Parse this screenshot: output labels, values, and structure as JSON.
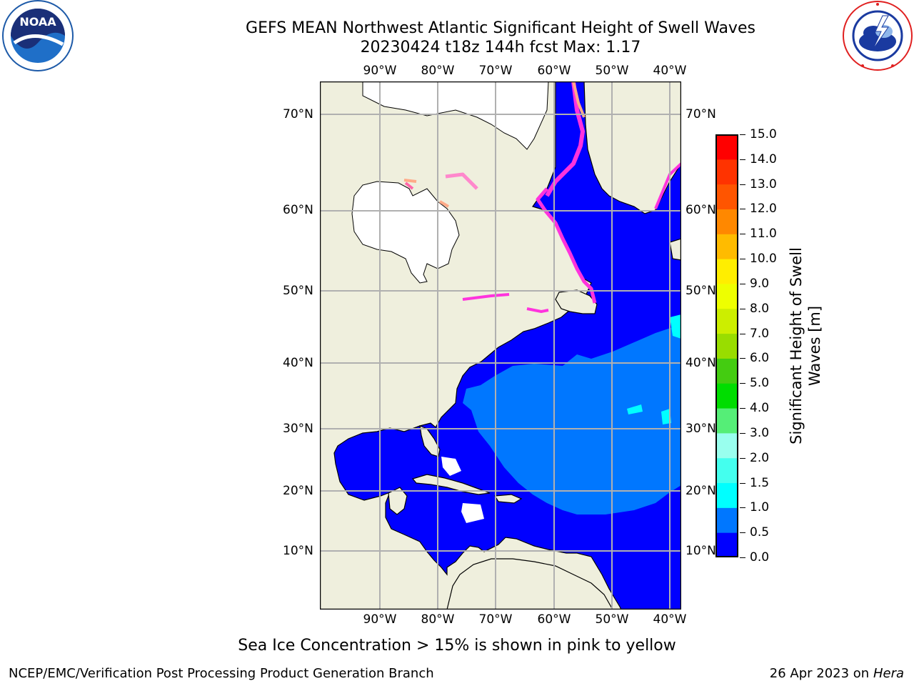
{
  "title": {
    "line1": "GEFS MEAN Northwest Atlantic Significant Height of Swell Waves",
    "line2": "20230424 t18z 144h fcst   Max: 1.17"
  },
  "map": {
    "lon_labels": [
      "90°W",
      "80°W",
      "70°W",
      "60°W",
      "50°W",
      "40°W"
    ],
    "lat_labels": [
      "70°N",
      "60°N",
      "50°N",
      "40°N",
      "30°N",
      "20°N",
      "10°N"
    ],
    "colors": {
      "land": "#efefdd",
      "ice": "#ffffff",
      "grid": "#b0b0b0",
      "coast": "#000000",
      "swell_0": "#0000ff",
      "swell_05": "#0077ff",
      "swell_10": "#00ffff",
      "ice_edge": "#ff33dd",
      "ice_edge_2": "#ffaa88"
    }
  },
  "colorbar": {
    "label": "Significant Height of Swell Waves [m]",
    "ticks": [
      "0.0",
      "0.5",
      "1.0",
      "1.5",
      "2.0",
      "3.0",
      "4.0",
      "5.0",
      "6.0",
      "7.0",
      "8.0",
      "9.0",
      "10.0",
      "11.0",
      "12.0",
      "13.0",
      "14.0",
      "15.0"
    ],
    "colors": [
      "#0000ff",
      "#0077ff",
      "#00ffff",
      "#44ffee",
      "#99ffee",
      "#55ee77",
      "#00dd00",
      "#44cc11",
      "#99dd00",
      "#ccee00",
      "#eeff00",
      "#ffee00",
      "#ffbb00",
      "#ff8800",
      "#ff5500",
      "#ff3300",
      "#ff0000"
    ]
  },
  "note": "Sea Ice Concentration > 15% is shown in pink to yellow",
  "footer": {
    "left": "NCEP/EMC/Verification Post Processing Product Generation Branch",
    "date": "26 Apr 2023 on",
    "machine": "Hera"
  },
  "logos": {
    "noaa_text": "NOAA",
    "noaa_ring": "NATIONAL OCEANIC AND ATMOSPHERIC ADMINISTRATION · U.S. DEPARTMENT OF COMMERCE",
    "nws_ring": "NATIONAL WEATHER SERVICE"
  }
}
